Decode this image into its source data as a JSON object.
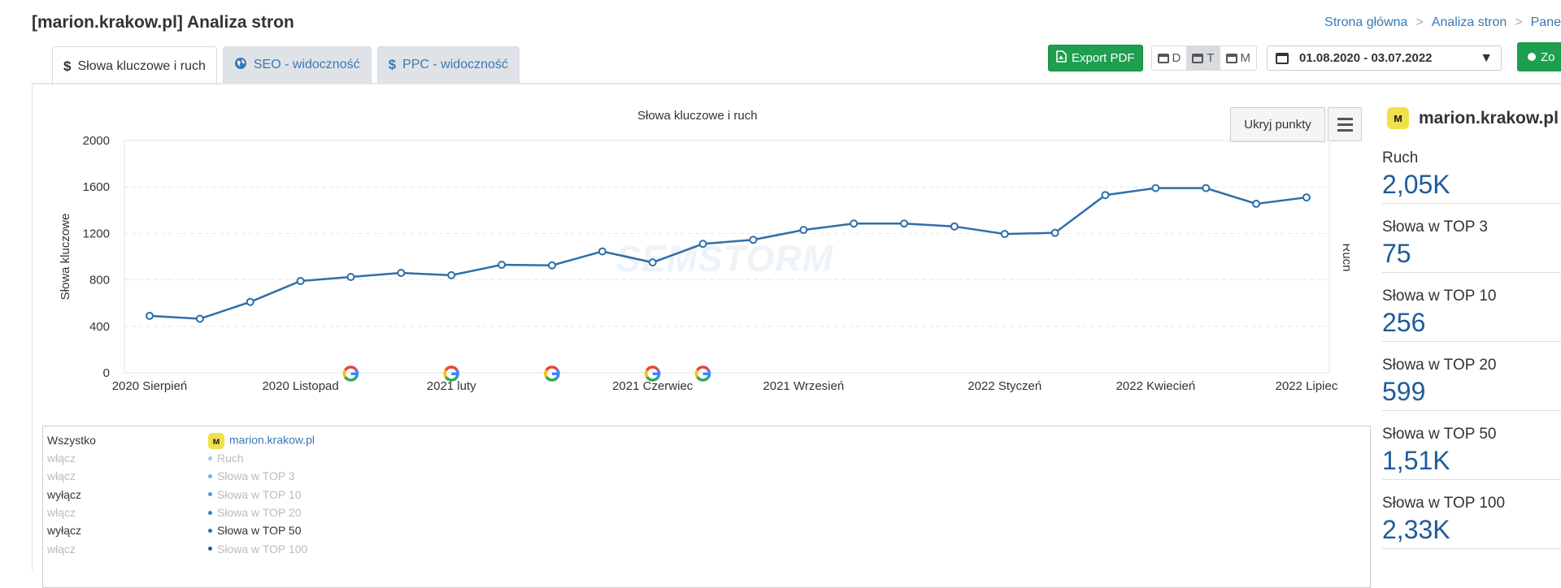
{
  "page": {
    "title": "[marion.krakow.pl] Analiza stron",
    "breadcrumb": [
      "Strona główna",
      "Analiza stron",
      "Pane"
    ]
  },
  "tabs": [
    {
      "icon": "$",
      "label": "Słowa kluczowe i ruch"
    },
    {
      "icon": "globe",
      "label": "SEO - widoczność"
    },
    {
      "icon": "$",
      "label": "PPC - widoczność"
    }
  ],
  "toolbar": {
    "export_label": "Export PDF",
    "granularity": [
      "D",
      "T",
      "M"
    ],
    "selected_granularity": "T",
    "date_range": "01.08.2020 - 03.07.2022",
    "extra_button_label": "Zo"
  },
  "chart": {
    "hide_points_label": "Ukryj punkty",
    "watermark": "SEMSTORM",
    "chart_data": {
      "type": "line",
      "title": "Słowa kluczowe i ruch",
      "ylabel": "Słowa kluczowe",
      "y2label": "Ruch",
      "ylim": [
        0,
        2000
      ],
      "yticks": [
        0,
        400,
        800,
        1200,
        1600,
        2000
      ],
      "xtick_labels": [
        "2020 Sierpień",
        "2020 Listopad",
        "2021 luty",
        "2021 Czerwiec",
        "2021 Wrzesień",
        "2022 Styczeń",
        "2022 Kwiecień",
        "2022 Lipiec"
      ],
      "series": [
        {
          "values": [
            490,
            465,
            610,
            790,
            825,
            860,
            840,
            930,
            925,
            1045,
            950,
            1110,
            1145,
            1230,
            1285,
            1285,
            1260,
            1195,
            1205,
            1530,
            1590,
            1590,
            1455,
            1510
          ],
          "color": "#2f6fa8"
        }
      ],
      "markers": [
        "google",
        "google",
        "google",
        "google",
        "google"
      ],
      "grid": true
    }
  },
  "legend": {
    "all_label": "Wszystko",
    "domain": "marion.krakow.pl",
    "rows": [
      {
        "toggle": "włącz",
        "label": "Ruch",
        "active": false,
        "color": "#a9c7e8"
      },
      {
        "toggle": "włącz",
        "label": "Słowa w TOP 3",
        "active": false,
        "color": "#7faedc"
      },
      {
        "toggle": "wyłącz",
        "label": "Słowa w TOP 10",
        "active": false,
        "color": "#5a97cf"
      },
      {
        "toggle": "włącz",
        "label": "Słowa w TOP 20",
        "active": false,
        "color": "#3f7fbb"
      },
      {
        "toggle": "wyłącz",
        "label": "Słowa w TOP 50",
        "active": true,
        "color": "#2f6fa8"
      },
      {
        "toggle": "włącz",
        "label": "Słowa w TOP 100",
        "active": false,
        "color": "#1f5c9a"
      }
    ]
  },
  "sidebar": {
    "domain": "marion.krakow.pl",
    "metrics": [
      {
        "label": "Ruch",
        "value": "2,05K"
      },
      {
        "label": "Słowa w TOP 3",
        "value": "75"
      },
      {
        "label": "Słowa w TOP 10",
        "value": "256"
      },
      {
        "label": "Słowa w TOP 20",
        "value": "599"
      },
      {
        "label": "Słowa w TOP 50",
        "value": "1,51K"
      },
      {
        "label": "Słowa w TOP 100",
        "value": "2,33K"
      }
    ]
  }
}
